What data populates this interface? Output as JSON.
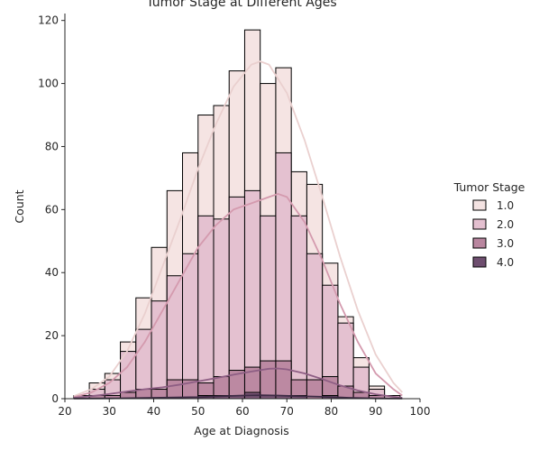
{
  "chart_data": {
    "type": "bar",
    "subtype": "stacked-histogram-with-kde",
    "title": "Tumor Stage at Different Ages",
    "xlabel": "Age at Diagnosis",
    "ylabel": "Count",
    "xlim": [
      20,
      100
    ],
    "ylim": [
      0,
      120
    ],
    "xticks": [
      20,
      30,
      40,
      50,
      60,
      70,
      80,
      90,
      100
    ],
    "yticks": [
      0,
      20,
      40,
      60,
      80,
      100,
      120
    ],
    "grid": false,
    "legend_title": "Tumor Stage",
    "legend_position": "right",
    "bin_edges": [
      22,
      25.5,
      29,
      32.5,
      36,
      39.5,
      43,
      46.5,
      50,
      53.5,
      57,
      60.5,
      64,
      67.5,
      71,
      74.5,
      78,
      81.5,
      85,
      88.5,
      92,
      95.5
    ],
    "series": [
      {
        "name": "1.0",
        "color": "#f4e3e2",
        "totals": [
          1,
          5,
          8,
          18,
          32,
          48,
          66,
          78,
          90,
          93,
          104,
          117,
          100,
          105,
          72,
          68,
          43,
          26,
          13,
          4,
          1
        ],
        "kde": [
          [
            22,
            0.8
          ],
          [
            26,
            3
          ],
          [
            30,
            7
          ],
          [
            34,
            15
          ],
          [
            38,
            27
          ],
          [
            42,
            42
          ],
          [
            46,
            57
          ],
          [
            50,
            73
          ],
          [
            54,
            87
          ],
          [
            58,
            99
          ],
          [
            62,
            106
          ],
          [
            64,
            107
          ],
          [
            66,
            106
          ],
          [
            70,
            97
          ],
          [
            74,
            82
          ],
          [
            78,
            64
          ],
          [
            82,
            45
          ],
          [
            86,
            28
          ],
          [
            90,
            14
          ],
          [
            94,
            5
          ],
          [
            96,
            2
          ]
        ]
      },
      {
        "name": "2.0",
        "color": "#e3bfcf",
        "totals": [
          1,
          3,
          6,
          15,
          22,
          31,
          39,
          46,
          58,
          57,
          64,
          66,
          58,
          78,
          58,
          46,
          36,
          24,
          10,
          3,
          1
        ],
        "kde": [
          [
            22,
            0.5
          ],
          [
            26,
            2
          ],
          [
            30,
            5
          ],
          [
            34,
            10
          ],
          [
            38,
            18
          ],
          [
            42,
            28
          ],
          [
            46,
            38
          ],
          [
            50,
            48
          ],
          [
            54,
            55
          ],
          [
            58,
            60
          ],
          [
            62,
            62
          ],
          [
            66,
            64
          ],
          [
            68,
            65
          ],
          [
            70,
            64
          ],
          [
            74,
            56
          ],
          [
            78,
            44
          ],
          [
            82,
            30
          ],
          [
            86,
            18
          ],
          [
            90,
            8
          ],
          [
            94,
            3
          ],
          [
            96,
            1
          ]
        ]
      },
      {
        "name": "3.0",
        "color": "#b9869f",
        "totals": [
          0,
          1,
          1,
          2,
          3,
          3,
          6,
          6,
          5,
          7,
          9,
          10,
          12,
          12,
          6,
          6,
          7,
          4,
          2,
          1,
          0
        ],
        "kde": [
          [
            22,
            0.3
          ],
          [
            26,
            0.8
          ],
          [
            30,
            1.5
          ],
          [
            34,
            2.3
          ],
          [
            38,
            3
          ],
          [
            42,
            3.6
          ],
          [
            46,
            4.5
          ],
          [
            50,
            5.5
          ],
          [
            54,
            6.5
          ],
          [
            58,
            7.6
          ],
          [
            62,
            8.6
          ],
          [
            66,
            9.5
          ],
          [
            68,
            9.6
          ],
          [
            70,
            9.3
          ],
          [
            74,
            8
          ],
          [
            78,
            6.2
          ],
          [
            82,
            4.2
          ],
          [
            86,
            2.6
          ],
          [
            90,
            1.4
          ],
          [
            94,
            0.6
          ],
          [
            96,
            0.3
          ]
        ]
      },
      {
        "name": "4.0",
        "color": "#6e4e6f",
        "totals": [
          0,
          0,
          0,
          0,
          0,
          0,
          0,
          0,
          1,
          1,
          1,
          2,
          1,
          1,
          1,
          0,
          1,
          0,
          0,
          0,
          0
        ],
        "kde": [
          [
            22,
            0.05
          ],
          [
            30,
            0.1
          ],
          [
            40,
            0.3
          ],
          [
            50,
            0.5
          ],
          [
            56,
            0.8
          ],
          [
            60,
            1
          ],
          [
            64,
            1.1
          ],
          [
            68,
            1
          ],
          [
            72,
            0.8
          ],
          [
            78,
            0.6
          ],
          [
            84,
            0.3
          ],
          [
            90,
            0.1
          ],
          [
            96,
            0.05
          ]
        ]
      }
    ]
  }
}
